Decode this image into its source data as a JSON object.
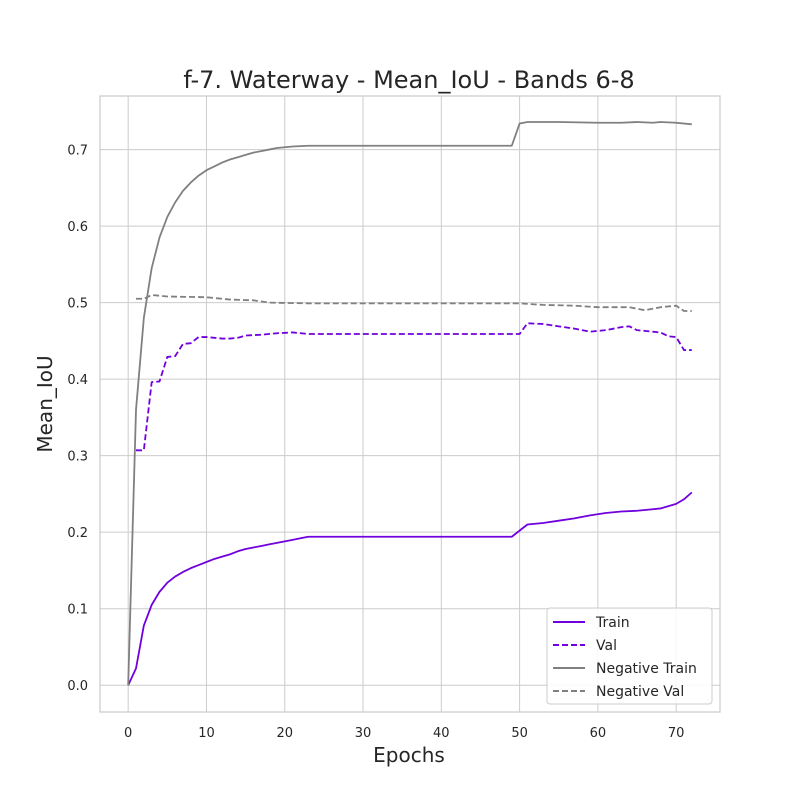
{
  "chart_data": {
    "type": "line",
    "title": "f-7. Waterway - Mean_IoU - Bands 6-8",
    "xlabel": "Epochs",
    "ylabel": "Mean_IoU",
    "xlim": [
      -3.6,
      75.6
    ],
    "ylim": [
      -0.035,
      0.77
    ],
    "xticks": [
      0,
      10,
      20,
      30,
      40,
      50,
      60,
      70
    ],
    "yticks": [
      0.0,
      0.1,
      0.2,
      0.3,
      0.4,
      0.5,
      0.6,
      0.7
    ],
    "grid": true,
    "legend_position": "lower-right",
    "series": [
      {
        "name": "Train",
        "color": "#7000dd",
        "dash": "solid",
        "points": [
          [
            0,
            0.0
          ],
          [
            1,
            0.022
          ],
          [
            2,
            0.078
          ],
          [
            3,
            0.105
          ],
          [
            4,
            0.122
          ],
          [
            5,
            0.134
          ],
          [
            6,
            0.142
          ],
          [
            7,
            0.148
          ],
          [
            8,
            0.153
          ],
          [
            9,
            0.157
          ],
          [
            10,
            0.161
          ],
          [
            11,
            0.165
          ],
          [
            12,
            0.168
          ],
          [
            13,
            0.171
          ],
          [
            14,
            0.175
          ],
          [
            15,
            0.178
          ],
          [
            16,
            0.18
          ],
          [
            17,
            0.182
          ],
          [
            18,
            0.184
          ],
          [
            19,
            0.186
          ],
          [
            20,
            0.188
          ],
          [
            21,
            0.19
          ],
          [
            22,
            0.192
          ],
          [
            23,
            0.194
          ],
          [
            30,
            0.194
          ],
          [
            40,
            0.194
          ],
          [
            49,
            0.194
          ],
          [
            51,
            0.21
          ],
          [
            53,
            0.212
          ],
          [
            55,
            0.215
          ],
          [
            57,
            0.218
          ],
          [
            59,
            0.222
          ],
          [
            61,
            0.225
          ],
          [
            63,
            0.227
          ],
          [
            65,
            0.228
          ],
          [
            67,
            0.23
          ],
          [
            68,
            0.231
          ],
          [
            70,
            0.237
          ],
          [
            71,
            0.243
          ],
          [
            72,
            0.252
          ]
        ]
      },
      {
        "name": "Val",
        "color": "#7000dd",
        "dash": "dashed",
        "points": [
          [
            1,
            0.307
          ],
          [
            2,
            0.307
          ],
          [
            3,
            0.396
          ],
          [
            4,
            0.397
          ],
          [
            5,
            0.429
          ],
          [
            6,
            0.43
          ],
          [
            7,
            0.446
          ],
          [
            8,
            0.447
          ],
          [
            9,
            0.455
          ],
          [
            10,
            0.455
          ],
          [
            11,
            0.454
          ],
          [
            12,
            0.453
          ],
          [
            13,
            0.453
          ],
          [
            14,
            0.454
          ],
          [
            15,
            0.457
          ],
          [
            17,
            0.458
          ],
          [
            19,
            0.46
          ],
          [
            21,
            0.461
          ],
          [
            23,
            0.459
          ],
          [
            30,
            0.459
          ],
          [
            40,
            0.459
          ],
          [
            50,
            0.459
          ],
          [
            51,
            0.473
          ],
          [
            53,
            0.472
          ],
          [
            55,
            0.469
          ],
          [
            57,
            0.466
          ],
          [
            59,
            0.462
          ],
          [
            61,
            0.464
          ],
          [
            63,
            0.468
          ],
          [
            64,
            0.469
          ],
          [
            65,
            0.464
          ],
          [
            67,
            0.462
          ],
          [
            68,
            0.461
          ],
          [
            69,
            0.456
          ],
          [
            70,
            0.455
          ],
          [
            71,
            0.438
          ],
          [
            72,
            0.438
          ]
        ]
      },
      {
        "name": "Negative Train",
        "color": "#808080",
        "dash": "solid",
        "points": [
          [
            0,
            0.0
          ],
          [
            1,
            0.36
          ],
          [
            2,
            0.48
          ],
          [
            3,
            0.545
          ],
          [
            4,
            0.585
          ],
          [
            5,
            0.612
          ],
          [
            6,
            0.631
          ],
          [
            7,
            0.646
          ],
          [
            8,
            0.657
          ],
          [
            9,
            0.666
          ],
          [
            10,
            0.673
          ],
          [
            11,
            0.678
          ],
          [
            12,
            0.683
          ],
          [
            13,
            0.687
          ],
          [
            14,
            0.69
          ],
          [
            15,
            0.693
          ],
          [
            16,
            0.696
          ],
          [
            17,
            0.698
          ],
          [
            18,
            0.7
          ],
          [
            19,
            0.702
          ],
          [
            20,
            0.703
          ],
          [
            21,
            0.704
          ],
          [
            23,
            0.705
          ],
          [
            30,
            0.705
          ],
          [
            40,
            0.705
          ],
          [
            49,
            0.705
          ],
          [
            50,
            0.734
          ],
          [
            51,
            0.736
          ],
          [
            55,
            0.736
          ],
          [
            60,
            0.735
          ],
          [
            63,
            0.735
          ],
          [
            65,
            0.736
          ],
          [
            67,
            0.735
          ],
          [
            68,
            0.736
          ],
          [
            70,
            0.735
          ],
          [
            72,
            0.733
          ]
        ]
      },
      {
        "name": "Negative Val",
        "color": "#808080",
        "dash": "dashed",
        "points": [
          [
            1,
            0.505
          ],
          [
            2,
            0.505
          ],
          [
            3,
            0.51
          ],
          [
            4,
            0.509
          ],
          [
            5,
            0.508
          ],
          [
            10,
            0.507
          ],
          [
            13,
            0.504
          ],
          [
            16,
            0.503
          ],
          [
            18,
            0.5
          ],
          [
            23,
            0.499
          ],
          [
            30,
            0.499
          ],
          [
            40,
            0.499
          ],
          [
            50,
            0.499
          ],
          [
            53,
            0.497
          ],
          [
            57,
            0.496
          ],
          [
            60,
            0.494
          ],
          [
            64,
            0.494
          ],
          [
            66,
            0.49
          ],
          [
            68,
            0.494
          ],
          [
            70,
            0.496
          ],
          [
            71,
            0.489
          ],
          [
            72,
            0.489
          ]
        ]
      }
    ]
  }
}
